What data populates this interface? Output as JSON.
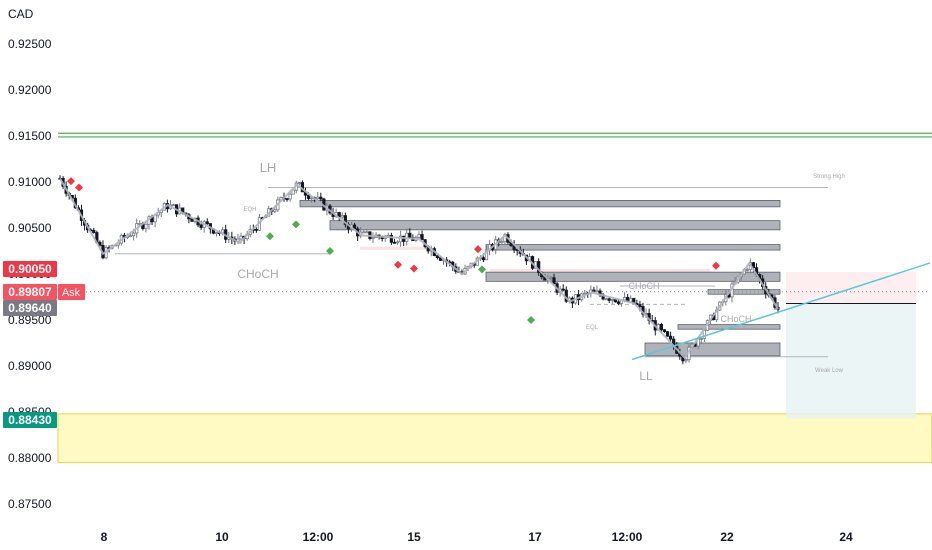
{
  "chart_data": {
    "type": "candlestick",
    "currency": "CAD",
    "y_ticks": [
      "0.92500",
      "0.92000",
      "0.91500",
      "0.91000",
      "0.90500",
      "0.90000",
      "0.89500",
      "0.89000",
      "0.88500",
      "0.88000",
      "0.87500"
    ],
    "ylim": [
      0.8718,
      0.9284
    ],
    "x_ticks": [
      "8",
      "10",
      "12:00",
      "15",
      "17",
      "12:00",
      "22",
      "24"
    ],
    "price_labels": [
      {
        "text": "0.90050",
        "value": 0.9005,
        "color": "#f23645"
      },
      {
        "text": "0.89807",
        "value": 0.89807,
        "color": "#f7525f",
        "tag": "Ask"
      },
      {
        "text": "0.89640",
        "value": 0.8964,
        "color": "#787b86"
      },
      {
        "text": "0.88430",
        "value": 0.8843,
        "color": "#089981"
      }
    ],
    "resistance_lines": [
      0.9153,
      0.9149
    ],
    "demand_zone": [
      0.8795,
      0.8848
    ],
    "annotations": [
      {
        "text": "LH",
        "size": "large"
      },
      {
        "text": "CHoCH",
        "size": "large"
      },
      {
        "text": "LL",
        "size": "large"
      },
      {
        "text": "EQH",
        "size": "small"
      },
      {
        "text": "EQL",
        "size": "small"
      },
      {
        "text": "CHoCH",
        "size": "medium"
      },
      {
        "text": "CHoCH",
        "size": "medium"
      },
      {
        "text": "Strong High",
        "size": "tiny"
      },
      {
        "text": "Weak Low",
        "size": "tiny"
      }
    ],
    "swing_path": [
      [
        0.0,
        0.9104
      ],
      [
        0.06,
        0.9022
      ],
      [
        0.15,
        0.9075
      ],
      [
        0.25,
        0.9034
      ],
      [
        0.33,
        0.9097
      ],
      [
        0.42,
        0.9042
      ],
      [
        0.5,
        0.9038
      ],
      [
        0.56,
        0.9
      ],
      [
        0.62,
        0.9042
      ],
      [
        0.71,
        0.897
      ],
      [
        0.74,
        0.898
      ],
      [
        0.8,
        0.8968
      ],
      [
        0.87,
        0.8909
      ],
      [
        0.96,
        0.9012
      ],
      [
        1.0,
        0.8962
      ]
    ],
    "order_blocks": [
      {
        "top": 0.908,
        "bottom": 0.9073
      },
      {
        "top": 0.9058,
        "bottom": 0.9048
      },
      {
        "top": 0.9032,
        "bottom": 0.9026
      },
      {
        "top": 0.9002,
        "bottom": 0.8992
      },
      {
        "top": 0.8983,
        "bottom": 0.8978
      },
      {
        "top": 0.8945,
        "bottom": 0.894
      },
      {
        "top": 0.8925,
        "bottom": 0.8911
      }
    ]
  },
  "colors": {
    "up": "#787b86",
    "down": "#131722",
    "resistance": "#4caf50",
    "zone": "#fff9c4",
    "trend": "#5ac8d8",
    "swing": "#b2b5be",
    "sell": "#f23645",
    "buy": "#4caf50"
  }
}
